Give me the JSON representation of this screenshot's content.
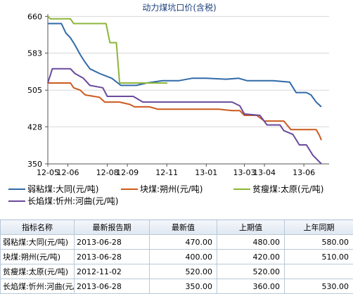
{
  "chart_data": {
    "type": "line",
    "title": "动力煤坑口价(含税)",
    "y_ticks": [
      350,
      428,
      505,
      583,
      660
    ],
    "ylim": [
      350,
      665
    ],
    "x_ticks": [
      "12-05",
      "12-06",
      "12-08",
      "12-09",
      "12-11",
      "13-01",
      "13-03",
      "13-04",
      "13-06"
    ],
    "x_tick_dates": [
      "2012-05-01",
      "2012-06-01",
      "2012-08-01",
      "2012-09-01",
      "2012-11-01",
      "2013-01-01",
      "2013-03-01",
      "2013-04-01",
      "2013-06-01"
    ],
    "xlim": [
      "2012-05-01",
      "2013-07-10"
    ],
    "grid": "horizontal",
    "legend_position": "bottom",
    "series": [
      {
        "name": "弱粘煤:大同(元/吨)",
        "color": "#2f6aa8",
        "points": [
          [
            "2012-05-01",
            645
          ],
          [
            "2012-05-22",
            645
          ],
          [
            "2012-05-29",
            625
          ],
          [
            "2012-06-05",
            615
          ],
          [
            "2012-06-12",
            600
          ],
          [
            "2012-06-20",
            580
          ],
          [
            "2012-06-27",
            565
          ],
          [
            "2012-07-05",
            550
          ],
          [
            "2012-07-20",
            540
          ],
          [
            "2012-08-08",
            530
          ],
          [
            "2012-08-22",
            515
          ],
          [
            "2012-09-15",
            515
          ],
          [
            "2012-10-01",
            520
          ],
          [
            "2012-10-25",
            525
          ],
          [
            "2012-11-20",
            525
          ],
          [
            "2012-12-10",
            530
          ],
          [
            "2013-01-01",
            530
          ],
          [
            "2013-02-01",
            528
          ],
          [
            "2013-02-20",
            530
          ],
          [
            "2013-03-05",
            525
          ],
          [
            "2013-04-15",
            525
          ],
          [
            "2013-05-10",
            522
          ],
          [
            "2013-05-20",
            500
          ],
          [
            "2013-06-05",
            500
          ],
          [
            "2013-06-12",
            495
          ],
          [
            "2013-06-20",
            480
          ],
          [
            "2013-06-28",
            470
          ]
        ]
      },
      {
        "name": "块煤:朔州(元/吨)",
        "color": "#cc5a1e",
        "points": [
          [
            "2012-05-01",
            520
          ],
          [
            "2012-06-05",
            520
          ],
          [
            "2012-06-10",
            510
          ],
          [
            "2012-06-20",
            505
          ],
          [
            "2012-06-28",
            495
          ],
          [
            "2012-07-20",
            490
          ],
          [
            "2012-07-28",
            480
          ],
          [
            "2012-08-20",
            480
          ],
          [
            "2012-09-05",
            475
          ],
          [
            "2012-09-12",
            470
          ],
          [
            "2012-10-05",
            470
          ],
          [
            "2012-10-18",
            465
          ],
          [
            "2013-01-20",
            465
          ],
          [
            "2013-02-10",
            462
          ],
          [
            "2013-02-22",
            462
          ],
          [
            "2013-03-01",
            452
          ],
          [
            "2013-03-20",
            452
          ],
          [
            "2013-04-01",
            440
          ],
          [
            "2013-05-01",
            440
          ],
          [
            "2013-05-12",
            422
          ],
          [
            "2013-06-20",
            422
          ],
          [
            "2013-06-25",
            410
          ],
          [
            "2013-06-28",
            400
          ]
        ]
      },
      {
        "name": "贫瘦煤:太原(元/吨)",
        "color": "#8db53a",
        "points": [
          [
            "2012-05-01",
            660
          ],
          [
            "2012-05-05",
            655
          ],
          [
            "2012-06-05",
            655
          ],
          [
            "2012-06-10",
            645
          ],
          [
            "2012-07-30",
            645
          ],
          [
            "2012-08-05",
            605
          ],
          [
            "2012-08-15",
            605
          ],
          [
            "2012-08-20",
            520
          ],
          [
            "2012-11-02",
            520
          ]
        ]
      },
      {
        "name": "长焰煤:忻州:河曲(元/吨)",
        "color": "#6a4a9c",
        "points": [
          [
            "2012-05-01",
            520
          ],
          [
            "2012-05-08",
            550
          ],
          [
            "2012-06-05",
            550
          ],
          [
            "2012-06-12",
            540
          ],
          [
            "2012-06-25",
            530
          ],
          [
            "2012-07-05",
            515
          ],
          [
            "2012-07-25",
            510
          ],
          [
            "2012-08-01",
            492
          ],
          [
            "2012-09-10",
            492
          ],
          [
            "2012-09-25",
            480
          ],
          [
            "2013-02-10",
            480
          ],
          [
            "2013-02-22",
            472
          ],
          [
            "2013-03-01",
            455
          ],
          [
            "2013-03-25",
            452
          ],
          [
            "2013-04-05",
            432
          ],
          [
            "2013-04-25",
            432
          ],
          [
            "2013-05-01",
            420
          ],
          [
            "2013-05-15",
            412
          ],
          [
            "2013-05-25",
            390
          ],
          [
            "2013-06-05",
            390
          ],
          [
            "2013-06-15",
            368
          ],
          [
            "2013-06-28",
            350
          ]
        ]
      }
    ]
  },
  "legend": [
    {
      "label": "弱粘煤:大同(元/吨)",
      "color": "#2f6aa8"
    },
    {
      "label": "块煤:朔州(元/吨)",
      "color": "#cc5a1e"
    },
    {
      "label": "贫瘦煤:太原(元/吨)",
      "color": "#8db53a"
    },
    {
      "label": "长焰煤:忻州:河曲(元/吨)",
      "color": "#6a4a9c"
    }
  ],
  "table": {
    "headers": [
      "指标名称",
      "最新报告期",
      "最新值",
      "上期值",
      "上年同期"
    ],
    "rows": [
      [
        "弱粘煤:大同(元/吨)",
        "2013-06-28",
        "470.00",
        "480.00",
        "580.00"
      ],
      [
        "块煤:朔州(元/吨)",
        "2013-06-28",
        "400.00",
        "420.00",
        "510.00"
      ],
      [
        "贫瘦煤:太原(元/吨)",
        "2012-11-02",
        "520.00",
        "520.00",
        ""
      ],
      [
        "长焰煤:忻州:河曲(元/吨)",
        "2013-06-28",
        "350.00",
        "360.00",
        "530.00"
      ]
    ]
  }
}
